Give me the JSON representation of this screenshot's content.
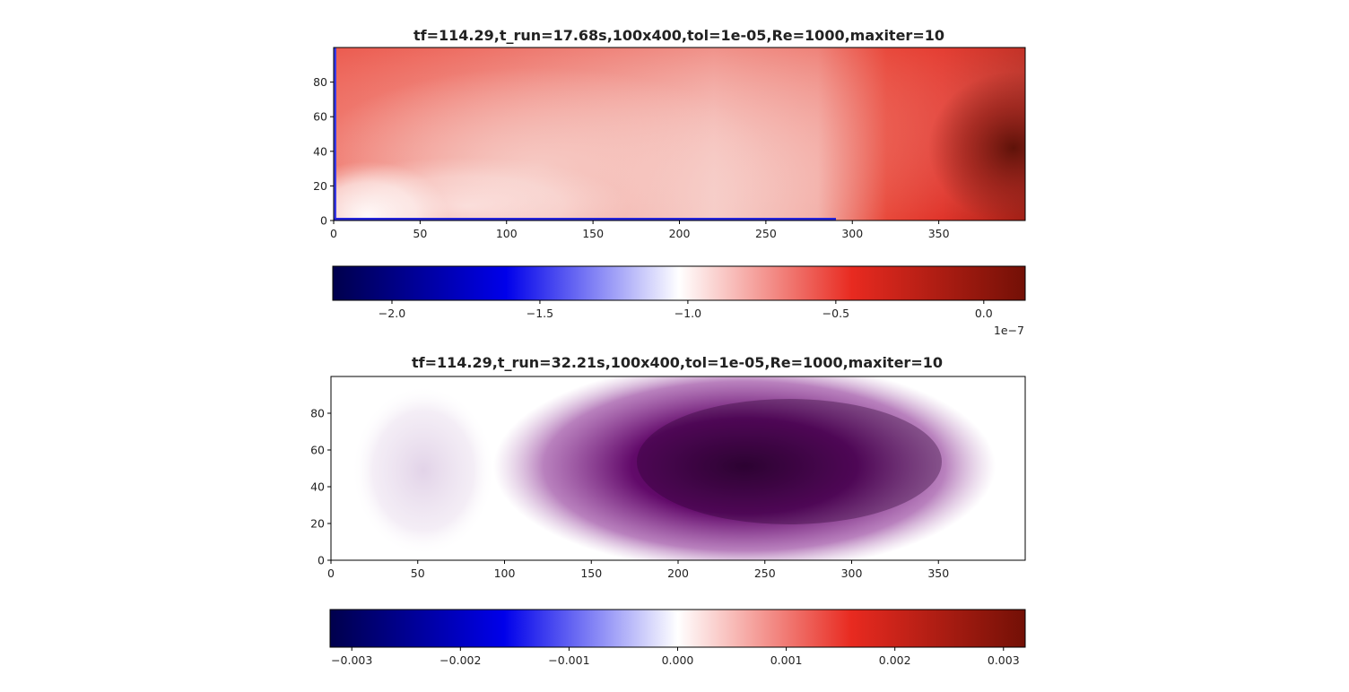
{
  "chart_data": [
    {
      "type": "heatmap",
      "title": "tf=114.29,t_run=17.68s,100x400,tol=1e-05,Re=1000,maxiter=10",
      "xlabel": "",
      "ylabel": "",
      "xlim": [
        0,
        400
      ],
      "ylim": [
        0,
        100
      ],
      "x_ticks": [
        0,
        50,
        100,
        150,
        200,
        250,
        300,
        350
      ],
      "x_tick_labels": [
        "0",
        "50",
        "100",
        "150",
        "200",
        "250",
        "300",
        "350"
      ],
      "y_ticks": [
        0,
        20,
        40,
        60,
        80
      ],
      "y_tick_labels": [
        "0",
        "20",
        "40",
        "60",
        "80"
      ],
      "colormap": "seismic",
      "field_description": "mostly light-to-medium red; near-white region around x 0-250 low y; deep red region x>300 peaking near x 390, y 45; thin blue strip along the left and bottom boundary",
      "colorbar": {
        "orientation": "horizontal",
        "range": [
          -2.2,
          0.14
        ],
        "ticks": [
          -2.0,
          -1.5,
          -1.0,
          -0.5,
          0.0
        ],
        "tick_labels": [
          "−2.0",
          "−1.5",
          "−1.0",
          "−0.5",
          "0.0"
        ],
        "offset_label": "1e−7"
      }
    },
    {
      "type": "heatmap",
      "title": "tf=114.29,t_run=32.21s,100x400,tol=1e-05,Re=1000,maxiter=10",
      "xlabel": "",
      "ylabel": "",
      "xlim": [
        0,
        400
      ],
      "ylim": [
        0,
        100
      ],
      "x_ticks": [
        0,
        50,
        100,
        150,
        200,
        250,
        300,
        350
      ],
      "x_tick_labels": [
        "0",
        "50",
        "100",
        "150",
        "200",
        "250",
        "300",
        "350"
      ],
      "y_ticks": [
        0,
        20,
        40,
        60,
        80
      ],
      "y_tick_labels": [
        "0",
        "20",
        "40",
        "60",
        "80"
      ],
      "colormap": "purples",
      "field_description": "faint lavender blob centered near x 55, y 48; white gap near x 92; large dark purple rounded region spanning x 120-370, y 15-85, darkest near x 280, y 45",
      "colorbar": {
        "orientation": "horizontal",
        "range": [
          -0.0032,
          0.0032
        ],
        "ticks": [
          -0.003,
          -0.002,
          -0.001,
          0.0,
          0.001,
          0.002,
          0.003
        ],
        "tick_labels": [
          "−0.003",
          "−0.002",
          "−0.001",
          "0.000",
          "0.001",
          "0.002",
          "0.003"
        ]
      }
    }
  ]
}
